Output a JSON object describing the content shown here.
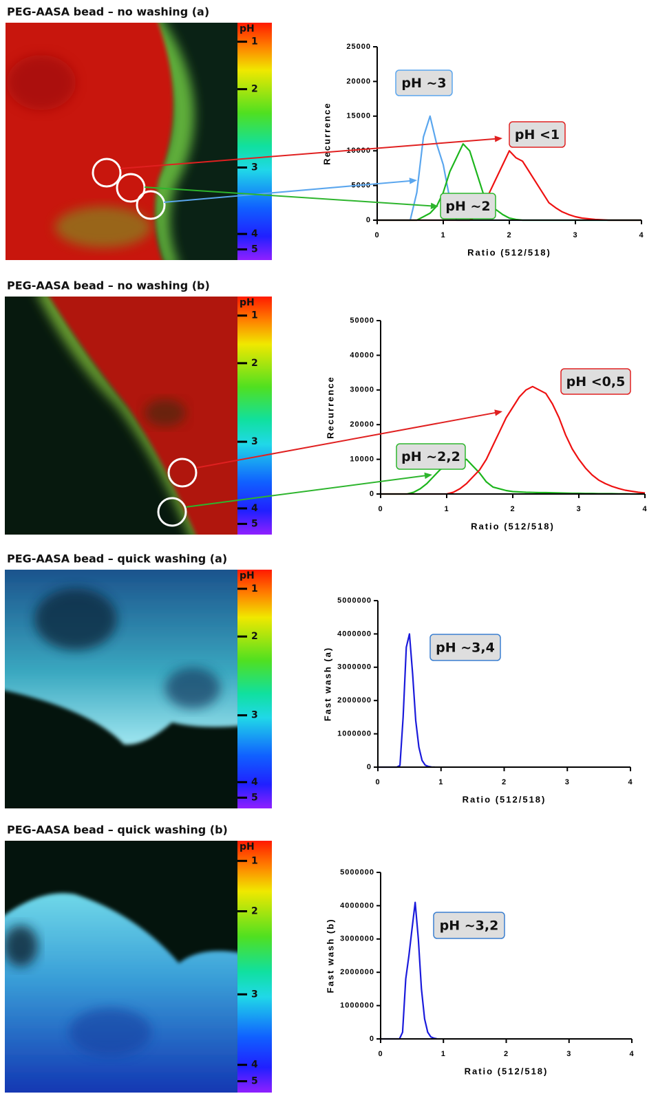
{
  "chart_data": [
    {
      "type": "line",
      "title": "PEG-AASA bead – no washing (a)",
      "x_label": "Ratio (512/518)",
      "y_label": "Recurrence",
      "colorbar": {
        "label": "pH",
        "ticks": [
          1,
          2,
          3,
          4,
          5
        ]
      },
      "xlim": [
        0,
        4
      ],
      "xticks": [
        0,
        1,
        2,
        3,
        4
      ],
      "ylim": [
        0,
        25000
      ],
      "yticks": [
        0,
        5000,
        10000,
        15000,
        20000,
        25000
      ],
      "x": [
        0,
        0.1,
        0.2,
        0.3,
        0.4,
        0.5,
        0.6,
        0.7,
        0.8,
        0.9,
        1,
        1.1,
        1.2,
        1.3,
        1.4,
        1.5,
        1.6,
        1.7,
        1.8,
        1.9,
        2,
        2.1,
        2.2,
        2.3,
        2.4,
        2.5,
        2.6,
        2.7,
        2.8,
        2.9,
        3,
        3.1,
        3.2,
        3.3,
        3.4,
        3.5,
        3.6,
        3.7,
        3.8,
        3.9,
        4
      ],
      "series": [
        {
          "color": "#5aa6ee",
          "values": [
            0,
            0,
            0,
            0,
            0,
            0,
            4000,
            12000,
            15000,
            11000,
            8000,
            3000,
            0,
            0,
            0,
            0,
            0,
            0,
            0,
            0,
            0,
            0,
            0,
            0,
            0,
            0,
            0,
            0,
            0,
            0,
            0,
            0,
            0,
            0,
            0,
            0,
            0,
            0,
            0,
            0,
            0
          ]
        },
        {
          "color": "#1cb51c",
          "values": [
            0,
            0,
            0,
            0,
            0,
            0,
            0,
            500,
            1000,
            2000,
            4000,
            7000,
            9000,
            11000,
            10000,
            7000,
            4000,
            2000,
            1500,
            800,
            300,
            100,
            0,
            0,
            0,
            0,
            0,
            0,
            0,
            0,
            0,
            0,
            0,
            0,
            0,
            0,
            0,
            0,
            0,
            0,
            0
          ]
        },
        {
          "color": "#ee1111",
          "values": [
            0,
            0,
            0,
            0,
            0,
            0,
            0,
            0,
            0,
            0,
            0,
            0,
            0,
            0,
            0,
            500,
            2000,
            4000,
            6000,
            8000,
            10000,
            9000,
            8500,
            7000,
            5500,
            4000,
            2500,
            1800,
            1200,
            800,
            500,
            300,
            200,
            100,
            50,
            0,
            0,
            0,
            0,
            0,
            0
          ]
        }
      ],
      "annotations": [
        {
          "text": "pH ~3",
          "color": "#5aa6ee"
        },
        {
          "text": "pH <1",
          "color": "#e02020"
        },
        {
          "text": "pH ~2",
          "color": "#2db52d"
        }
      ]
    },
    {
      "type": "line",
      "title": "PEG-AASA bead – no washing (b)",
      "x_label": "Ratio (512/518)",
      "y_label": "Recurrence",
      "colorbar": {
        "label": "pH",
        "ticks": [
          1,
          2,
          3,
          4,
          5
        ]
      },
      "xlim": [
        0,
        4
      ],
      "xticks": [
        0,
        1,
        2,
        3,
        4
      ],
      "ylim": [
        0,
        50000
      ],
      "yticks": [
        0,
        10000,
        20000,
        30000,
        40000,
        50000
      ],
      "x": [
        0,
        0.1,
        0.2,
        0.3,
        0.4,
        0.5,
        0.6,
        0.7,
        0.8,
        0.9,
        1,
        1.1,
        1.2,
        1.3,
        1.4,
        1.5,
        1.6,
        1.7,
        1.8,
        1.9,
        2,
        2.1,
        2.2,
        2.3,
        2.4,
        2.5,
        2.6,
        2.7,
        2.8,
        2.9,
        3,
        3.1,
        3.2,
        3.3,
        3.4,
        3.5,
        3.6,
        3.7,
        3.8,
        3.9,
        4
      ],
      "series": [
        {
          "color": "#1cb51c",
          "values": [
            0,
            0,
            0,
            0,
            0,
            500,
            1500,
            3000,
            5000,
            7000,
            8000,
            8500,
            9000,
            10000,
            8000,
            6000,
            3500,
            2000,
            1500,
            1000,
            700,
            600,
            500,
            450,
            400,
            400,
            350,
            300,
            250,
            200,
            200,
            150,
            150,
            100,
            100,
            100,
            50,
            50,
            0,
            0,
            0
          ]
        },
        {
          "color": "#ee1111",
          "values": [
            0,
            0,
            0,
            0,
            0,
            0,
            0,
            0,
            0,
            0,
            0,
            500,
            1500,
            3000,
            5000,
            7000,
            10000,
            14000,
            18000,
            22000,
            25000,
            28000,
            30000,
            31000,
            30000,
            29000,
            26000,
            22000,
            17000,
            13000,
            10000,
            7500,
            5500,
            4000,
            3000,
            2200,
            1600,
            1100,
            800,
            500,
            300
          ]
        }
      ],
      "annotations": [
        {
          "text": "pH <0,5",
          "color": "#e02020"
        },
        {
          "text": "pH ~2,2",
          "color": "#2db52d"
        }
      ]
    },
    {
      "type": "line",
      "title": "PEG-AASA bead – quick washing (a)",
      "x_label": "Ratio (512/518)",
      "y_label": "Fast wash (a)",
      "colorbar": {
        "label": "pH",
        "ticks": [
          1,
          2,
          3,
          4,
          5
        ]
      },
      "xlim": [
        0,
        4
      ],
      "xticks": [
        0,
        1,
        2,
        3,
        4
      ],
      "ylim": [
        0,
        5000000
      ],
      "yticks": [
        0,
        1000000,
        2000000,
        3000000,
        4000000,
        5000000
      ],
      "x": [
        0,
        0.3,
        0.35,
        0.4,
        0.45,
        0.5,
        0.55,
        0.6,
        0.65,
        0.7,
        0.75,
        0.8,
        0.85,
        0.9
      ],
      "series": [
        {
          "color": "#1a1adb",
          "values": [
            0,
            0,
            50000,
            1500000,
            3600000,
            4000000,
            2800000,
            1400000,
            600000,
            200000,
            60000,
            20000,
            5000,
            0
          ]
        }
      ],
      "annotations": [
        {
          "text": "pH ~3,4",
          "color": "#3a7fd0"
        }
      ]
    },
    {
      "type": "line",
      "title": "PEG-AASA bead – quick washing (b)",
      "x_label": "Ratio (512/518)",
      "y_label": "Fast wash (b)",
      "colorbar": {
        "label": "pH",
        "ticks": [
          1,
          2,
          3,
          4,
          5
        ]
      },
      "xlim": [
        0,
        4
      ],
      "xticks": [
        0,
        1,
        2,
        3,
        4
      ],
      "ylim": [
        0,
        5000000
      ],
      "yticks": [
        0,
        1000000,
        2000000,
        3000000,
        4000000,
        5000000
      ],
      "x": [
        0,
        0.3,
        0.35,
        0.4,
        0.45,
        0.5,
        0.55,
        0.6,
        0.65,
        0.7,
        0.75,
        0.8,
        0.85,
        0.9
      ],
      "series": [
        {
          "color": "#1a1adb",
          "values": [
            0,
            0,
            200000,
            1800000,
            2500000,
            3300000,
            4100000,
            3000000,
            1500000,
            600000,
            200000,
            60000,
            20000,
            0
          ]
        }
      ],
      "annotations": [
        {
          "text": "pH ~3,2",
          "color": "#3a7fd0"
        }
      ]
    }
  ]
}
